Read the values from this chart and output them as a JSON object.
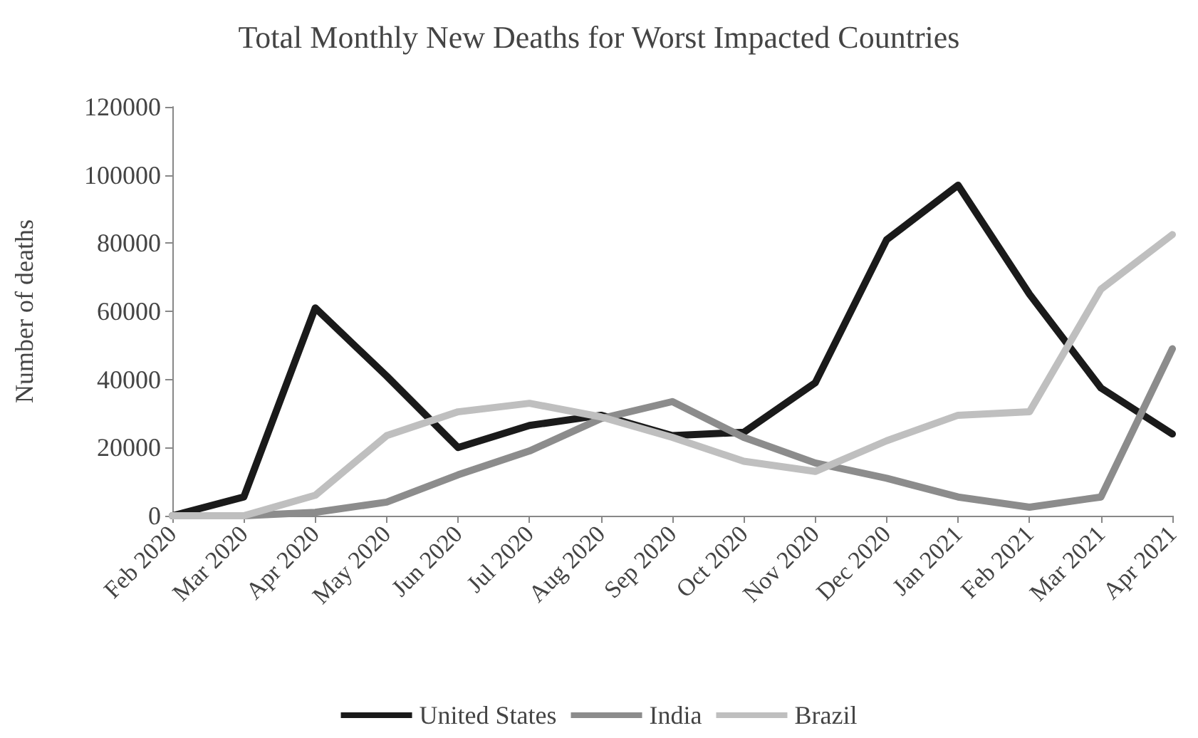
{
  "chart_data": {
    "type": "line",
    "title": "Total Monthly New Deaths for Worst Impacted Countries",
    "ylabel": "Number of deaths",
    "categories": [
      "Feb 2020",
      "Mar 2020",
      "Apr 2020",
      "May 2020",
      "Jun 2020",
      "Jul 2020",
      "Aug 2020",
      "Sep 2020",
      "Oct 2020",
      "Nov 2020",
      "Dec 2020",
      "Jan 2021",
      "Feb 2021",
      "Mar 2021",
      "Apr 2021"
    ],
    "series": [
      {
        "name": "United States",
        "color": "#1a1a1a",
        "values": [
          0,
          5500,
          61000,
          41000,
          20000,
          26500,
          29500,
          23500,
          24500,
          39000,
          81000,
          97000,
          65000,
          37500,
          24000
        ]
      },
      {
        "name": "India",
        "color": "#8c8c8c",
        "values": [
          0,
          0,
          1000,
          4000,
          12000,
          19000,
          28500,
          33500,
          23000,
          15500,
          11000,
          5500,
          2500,
          5500,
          49000
        ]
      },
      {
        "name": "Brazil",
        "color": "#bfbfbf",
        "values": [
          0,
          0,
          6000,
          23500,
          30500,
          33000,
          29000,
          23000,
          16000,
          13000,
          22000,
          29500,
          30500,
          66500,
          82500
        ]
      }
    ],
    "ylim": [
      0,
      120000
    ],
    "yticks": [
      0,
      20000,
      40000,
      60000,
      80000,
      100000,
      120000
    ],
    "grid": false,
    "legend": "bottom",
    "marker": "none",
    "line_style": "solid"
  }
}
